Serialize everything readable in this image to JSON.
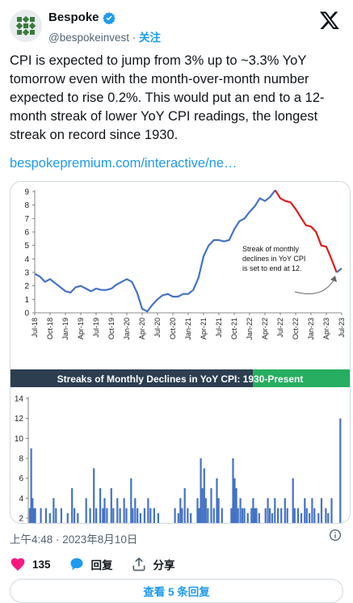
{
  "author": {
    "name": "Bespoke",
    "handle": "@bespokeinvest",
    "separator": "·",
    "follow_label": "关注"
  },
  "tweet": {
    "text": "CPI is expected to jump from 3% up to ~3.3% YoY tomorrow even with the month-over-month number expected to rise 0.2%.  This would put an end to a 12-month streak of lower YoY CPI readings, the longest streak on record since 1930.",
    "link_text": "bespokepremium.com/interactive/ne…",
    "timestamp": "上午4:48 · 2023年8月10日"
  },
  "actions": {
    "likes": "135",
    "reply_label": "回复",
    "share_label": "分享",
    "show_replies_label": "查看 5 条回复"
  },
  "colors": {
    "accent": "#1d9bf0",
    "like": "#f91880",
    "series_blue": "#4472c4",
    "series_red": "#e31a1c",
    "banner_bg": "#2c3e50",
    "banner_green": "#27ae60"
  },
  "icons": [
    "bespoke-logo-icon",
    "verified-badge-icon",
    "x-logo-icon",
    "info-icon",
    "heart-icon",
    "reply-icon",
    "share-icon"
  ],
  "chart_data": [
    {
      "type": "line",
      "ylim": [
        0,
        9
      ],
      "y_ticks": [
        "0",
        "1",
        "2",
        "3",
        "4",
        "5",
        "6",
        "7",
        "8",
        "9"
      ],
      "x_tick_labels": [
        "Jul-18",
        "Oct-18",
        "Jan-19",
        "Apr-19",
        "Jul-19",
        "Oct-19",
        "Jan-20",
        "Apr-20",
        "Jul-20",
        "Oct-20",
        "Jan-21",
        "Apr-21",
        "Jul-21",
        "Oct-21",
        "Jan-22",
        "Apr-22",
        "Jul-22",
        "Oct-22",
        "Jan-23",
        "Apr-23",
        "Jul-23"
      ],
      "annotation": "Streak of monthly declines in YoY CPI is set to end at 12.",
      "series": [
        {
          "color": "#4472c4",
          "x": [
            "2018-07",
            "2018-08",
            "2018-09",
            "2018-10",
            "2018-11",
            "2018-12",
            "2019-01",
            "2019-02",
            "2019-03",
            "2019-04",
            "2019-05",
            "2019-06",
            "2019-07",
            "2019-08",
            "2019-09",
            "2019-10",
            "2019-11",
            "2019-12",
            "2020-01",
            "2020-02",
            "2020-03",
            "2020-04",
            "2020-05",
            "2020-06",
            "2020-07",
            "2020-08",
            "2020-09",
            "2020-10",
            "2020-11",
            "2020-12",
            "2021-01",
            "2021-02",
            "2021-03",
            "2021-04",
            "2021-05",
            "2021-06",
            "2021-07",
            "2021-08",
            "2021-09",
            "2021-10",
            "2021-11",
            "2021-12",
            "2022-01",
            "2022-02",
            "2022-03",
            "2022-04",
            "2022-05",
            "2022-06"
          ],
          "values": [
            2.9,
            2.7,
            2.3,
            2.5,
            2.2,
            1.9,
            1.6,
            1.5,
            1.9,
            2.0,
            1.8,
            1.6,
            1.8,
            1.7,
            1.7,
            1.8,
            2.1,
            2.3,
            2.5,
            2.3,
            1.5,
            0.3,
            0.1,
            0.6,
            1.0,
            1.3,
            1.4,
            1.2,
            1.2,
            1.4,
            1.4,
            1.7,
            2.6,
            4.2,
            5.0,
            5.4,
            5.4,
            5.3,
            5.4,
            6.2,
            6.8,
            7.0,
            7.5,
            7.9,
            8.5,
            8.3,
            8.6,
            9.1
          ]
        },
        {
          "color": "#e31a1c",
          "x": [
            "2022-06",
            "2022-07",
            "2022-08",
            "2022-09",
            "2022-10",
            "2022-11",
            "2022-12",
            "2023-01",
            "2023-02",
            "2023-03",
            "2023-04",
            "2023-05",
            "2023-06"
          ],
          "values": [
            9.1,
            8.5,
            8.3,
            8.2,
            7.7,
            7.1,
            6.5,
            6.4,
            6.0,
            5.0,
            4.9,
            4.0,
            3.0
          ]
        },
        {
          "color": "#4472c4",
          "x": [
            "2023-06",
            "2023-07"
          ],
          "values": [
            3.0,
            3.3
          ]
        }
      ]
    },
    {
      "type": "bar",
      "title": "Streaks of Monthly Declines in YoY CPI: 1930-Present",
      "ylim": [
        2,
        14
      ],
      "y_ticks": [
        "2",
        "4",
        "6",
        "8",
        "10",
        "12",
        "14"
      ],
      "x_range": [
        1930,
        2023
      ],
      "bars": [
        {
          "x": 1930.2,
          "v": 3
        },
        {
          "x": 1930.6,
          "v": 9
        },
        {
          "x": 1931.0,
          "v": 4
        },
        {
          "x": 1931.4,
          "v": 3
        },
        {
          "x": 1931.8,
          "v": 3
        },
        {
          "x": 1933.5,
          "v": 3
        },
        {
          "x": 1935.0,
          "v": 3
        },
        {
          "x": 1936.2,
          "v": 2.5
        },
        {
          "x": 1937.3,
          "v": 4
        },
        {
          "x": 1938.0,
          "v": 3
        },
        {
          "x": 1939.6,
          "v": 3
        },
        {
          "x": 1941.5,
          "v": 2.5
        },
        {
          "x": 1942.8,
          "v": 5
        },
        {
          "x": 1943.5,
          "v": 3
        },
        {
          "x": 1944.5,
          "v": 2.5
        },
        {
          "x": 1947.0,
          "v": 4
        },
        {
          "x": 1948.2,
          "v": 3
        },
        {
          "x": 1949.3,
          "v": 7
        },
        {
          "x": 1950.0,
          "v": 3
        },
        {
          "x": 1951.2,
          "v": 5
        },
        {
          "x": 1952.0,
          "v": 3
        },
        {
          "x": 1952.5,
          "v": 4
        },
        {
          "x": 1953.2,
          "v": 3
        },
        {
          "x": 1954.5,
          "v": 5
        },
        {
          "x": 1955.1,
          "v": 3
        },
        {
          "x": 1956.3,
          "v": 4
        },
        {
          "x": 1957.1,
          "v": 3
        },
        {
          "x": 1958.3,
          "v": 4
        },
        {
          "x": 1959.0,
          "v": 3
        },
        {
          "x": 1960.4,
          "v": 6
        },
        {
          "x": 1960.9,
          "v": 3
        },
        {
          "x": 1961.6,
          "v": 4
        },
        {
          "x": 1962.3,
          "v": 3
        },
        {
          "x": 1963.2,
          "v": 2.5
        },
        {
          "x": 1964.4,
          "v": 3
        },
        {
          "x": 1965.5,
          "v": 4
        },
        {
          "x": 1966.2,
          "v": 3
        },
        {
          "x": 1967.3,
          "v": 3
        },
        {
          "x": 1968.5,
          "v": 2.5
        },
        {
          "x": 1973.5,
          "v": 3
        },
        {
          "x": 1974.5,
          "v": 2.5
        },
        {
          "x": 1975.1,
          "v": 4
        },
        {
          "x": 1975.6,
          "v": 3
        },
        {
          "x": 1976.4,
          "v": 5
        },
        {
          "x": 1977.3,
          "v": 3
        },
        {
          "x": 1978.2,
          "v": 2.5
        },
        {
          "x": 1980.2,
          "v": 4
        },
        {
          "x": 1980.7,
          "v": 3
        },
        {
          "x": 1981.2,
          "v": 8
        },
        {
          "x": 1981.7,
          "v": 5
        },
        {
          "x": 1982.2,
          "v": 7
        },
        {
          "x": 1982.7,
          "v": 4
        },
        {
          "x": 1983.3,
          "v": 3
        },
        {
          "x": 1984.3,
          "v": 5
        },
        {
          "x": 1985.1,
          "v": 3
        },
        {
          "x": 1986.0,
          "v": 6
        },
        {
          "x": 1986.5,
          "v": 4
        },
        {
          "x": 1987.5,
          "v": 3
        },
        {
          "x": 1990.3,
          "v": 3
        },
        {
          "x": 1990.8,
          "v": 8
        },
        {
          "x": 1991.3,
          "v": 6
        },
        {
          "x": 1991.8,
          "v": 5
        },
        {
          "x": 1992.3,
          "v": 3
        },
        {
          "x": 1993.0,
          "v": 4
        },
        {
          "x": 1993.6,
          "v": 3
        },
        {
          "x": 1994.2,
          "v": 3
        },
        {
          "x": 1995.2,
          "v": 2.5
        },
        {
          "x": 1996.3,
          "v": 3
        },
        {
          "x": 1996.8,
          "v": 4
        },
        {
          "x": 1997.3,
          "v": 3
        },
        {
          "x": 1997.8,
          "v": 3
        },
        {
          "x": 1998.6,
          "v": 2.5
        },
        {
          "x": 2000.5,
          "v": 3
        },
        {
          "x": 2001.2,
          "v": 4
        },
        {
          "x": 2001.8,
          "v": 3
        },
        {
          "x": 2002.5,
          "v": 2.5
        },
        {
          "x": 2003.3,
          "v": 4
        },
        {
          "x": 2004.2,
          "v": 3
        },
        {
          "x": 2005.2,
          "v": 3
        },
        {
          "x": 2006.3,
          "v": 4
        },
        {
          "x": 2007.0,
          "v": 3
        },
        {
          "x": 2008.7,
          "v": 6
        },
        {
          "x": 2009.2,
          "v": 3
        },
        {
          "x": 2010.2,
          "v": 3
        },
        {
          "x": 2011.2,
          "v": 2.5
        },
        {
          "x": 2012.2,
          "v": 4
        },
        {
          "x": 2012.8,
          "v": 3
        },
        {
          "x": 2013.6,
          "v": 2.5
        },
        {
          "x": 2014.4,
          "v": 4
        },
        {
          "x": 2015.1,
          "v": 3
        },
        {
          "x": 2016.3,
          "v": 2.5
        },
        {
          "x": 2017.2,
          "v": 4
        },
        {
          "x": 2018.5,
          "v": 3
        },
        {
          "x": 2019.2,
          "v": 2.5
        },
        {
          "x": 2020.2,
          "v": 4
        },
        {
          "x": 2022.8,
          "v": 12
        }
      ]
    }
  ]
}
